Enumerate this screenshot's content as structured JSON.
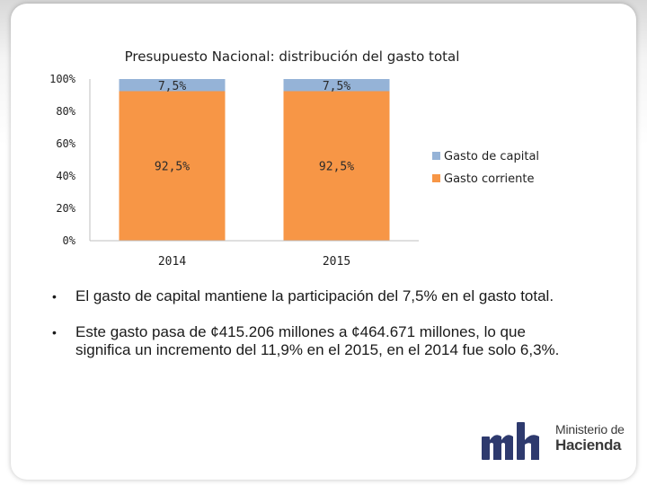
{
  "chart_data": {
    "type": "bar",
    "stacked": true,
    "title": "Presupuesto Nacional: distribución del gasto total",
    "categories": [
      "2014",
      "2015"
    ],
    "series": [
      {
        "name": "Gasto corriente",
        "values": [
          92.5,
          92.5
        ],
        "labels": [
          "92,5%",
          "92,5%"
        ],
        "color": "#f79646"
      },
      {
        "name": "Gasto de capital",
        "values": [
          7.5,
          7.5
        ],
        "labels": [
          "7,5%",
          "7,5%"
        ],
        "color": "#95b3d7"
      }
    ],
    "ylim": [
      0,
      100
    ],
    "yticks": [
      0,
      20,
      40,
      60,
      80,
      100
    ],
    "ytick_labels": [
      "0%",
      "20%",
      "40%",
      "60%",
      "80%",
      "100%"
    ],
    "legend": [
      "Gasto de capital",
      "Gasto corriente"
    ],
    "legend_position": "right"
  },
  "bullets": [
    "El gasto de capital mantiene la participación del 7,5% en el gasto total.",
    "Este gasto pasa de ¢415.206 millones a ¢464.671 millones, lo que significa un incremento del 11,9% en el 2015, en el 2014 fue solo 6,3%."
  ],
  "bullet_glyph": "•",
  "logo": {
    "mark": "mh",
    "line1": "Ministerio de",
    "line2": "Hacienda",
    "color": "#2e3a6e"
  }
}
